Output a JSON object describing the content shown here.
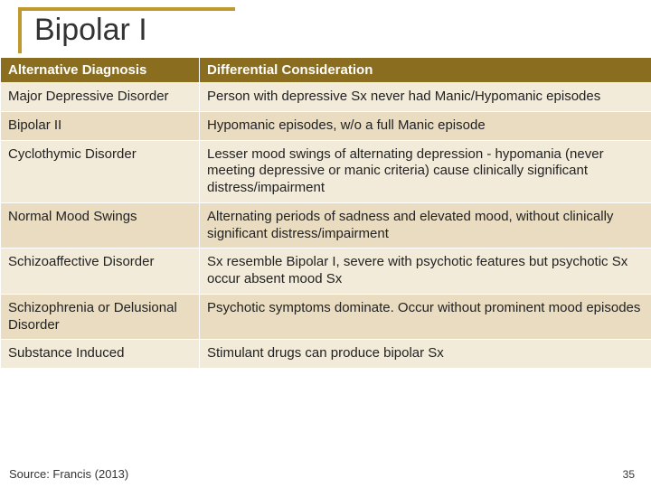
{
  "title": "Bipolar I",
  "table": {
    "headers": [
      "Alternative Diagnosis",
      "Differential Consideration"
    ],
    "rows": [
      {
        "c0": "Major Depressive Disorder",
        "c1": "Person with depressive Sx never had Manic/Hypomanic episodes",
        "band": "a"
      },
      {
        "c0": "Bipolar II",
        "c1": "Hypomanic episodes, w/o a full Manic episode",
        "band": "b"
      },
      {
        "c0": "Cyclothymic Disorder",
        "c1": "Lesser mood swings of alternating depression - hypomania (never meeting depressive or manic criteria) cause clinically significant distress/impairment",
        "band": "a"
      },
      {
        "c0": "Normal Mood Swings",
        "c1": "Alternating periods of sadness and elevated mood, without clinically significant distress/impairment",
        "band": "b"
      },
      {
        "c0": "Schizoaffective Disorder",
        "c1": "Sx resemble Bipolar I, severe with psychotic features but psychotic Sx occur absent mood Sx",
        "band": "a"
      },
      {
        "c0": "Schizophrenia or Delusional Disorder",
        "c1": "Psychotic symptoms dominate. Occur without prominent mood episodes",
        "band": "b"
      },
      {
        "c0": "Substance Induced",
        "c1": "Stimulant drugs can produce bipolar Sx",
        "band": "a"
      }
    ]
  },
  "source": "Source: Francis (2013)",
  "page_number": "35",
  "colors": {
    "accent": "#c09830",
    "header_bg": "#8a6d1f",
    "band_a": "#f3ebd9",
    "band_b": "#e9dcc0"
  }
}
